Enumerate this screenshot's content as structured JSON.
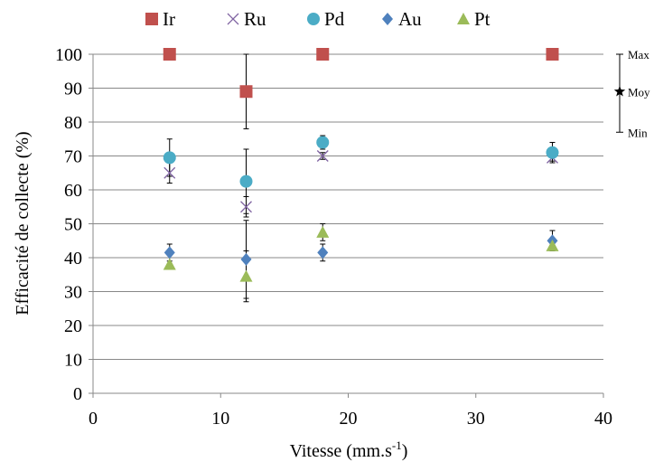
{
  "chart_data": {
    "type": "scatter",
    "xlabel": "Vitesse (mm.s",
    "xlabel_sup": "-1",
    "xlabel_end": ")",
    "ylabel": "Efficacité de collecte (%)",
    "xlim": [
      0,
      40
    ],
    "ylim": [
      0,
      100
    ],
    "xticks": [
      0,
      10,
      20,
      30,
      40
    ],
    "yticks": [
      0,
      10,
      20,
      30,
      40,
      50,
      60,
      70,
      80,
      90,
      100
    ],
    "grid": "horizontal",
    "legend_position": "top",
    "series": [
      {
        "name": "Ir",
        "marker": "square",
        "color": "#C0504D",
        "points": [
          {
            "x": 6,
            "y": 100
          },
          {
            "x": 12,
            "y": 89,
            "ymin": 78,
            "ymax": 100
          },
          {
            "x": 18,
            "y": 100
          },
          {
            "x": 36,
            "y": 100
          }
        ]
      },
      {
        "name": "Ru",
        "marker": "x",
        "color": "#8064A2",
        "points": [
          {
            "x": 6,
            "y": 65,
            "ymin": 62,
            "ymax": 68
          },
          {
            "x": 12,
            "y": 55,
            "ymin": 52,
            "ymax": 58
          },
          {
            "x": 18,
            "y": 70,
            "ymin": 69,
            "ymax": 71
          },
          {
            "x": 36,
            "y": 69.5,
            "ymin": 68.5,
            "ymax": 70.5
          }
        ]
      },
      {
        "name": "Pd",
        "marker": "circle",
        "color": "#4BACC6",
        "points": [
          {
            "x": 6,
            "y": 69.5,
            "ymin": 64,
            "ymax": 75
          },
          {
            "x": 12,
            "y": 62.5,
            "ymin": 53,
            "ymax": 72
          },
          {
            "x": 18,
            "y": 74,
            "ymin": 72,
            "ymax": 76
          },
          {
            "x": 36,
            "y": 71,
            "ymin": 68,
            "ymax": 74
          }
        ]
      },
      {
        "name": "Au",
        "marker": "diamond",
        "color": "#4F81BD",
        "points": [
          {
            "x": 6,
            "y": 41.5,
            "ymin": 39,
            "ymax": 44
          },
          {
            "x": 12,
            "y": 39.5,
            "ymin": 28,
            "ymax": 51
          },
          {
            "x": 18,
            "y": 41.5,
            "ymin": 39,
            "ymax": 44
          },
          {
            "x": 36,
            "y": 45,
            "ymin": 42,
            "ymax": 48
          }
        ]
      },
      {
        "name": "Pt",
        "marker": "triangle",
        "color": "#9BBB59",
        "points": [
          {
            "x": 6,
            "y": 38
          },
          {
            "x": 12,
            "y": 34.5,
            "ymin": 27,
            "ymax": 42
          },
          {
            "x": 18,
            "y": 47.5,
            "ymin": 45,
            "ymax": 50
          },
          {
            "x": 36,
            "y": 43.5
          }
        ]
      }
    ],
    "error_key": {
      "max_label": "Max",
      "mean_label": "Moy",
      "min_label": "Min"
    }
  }
}
